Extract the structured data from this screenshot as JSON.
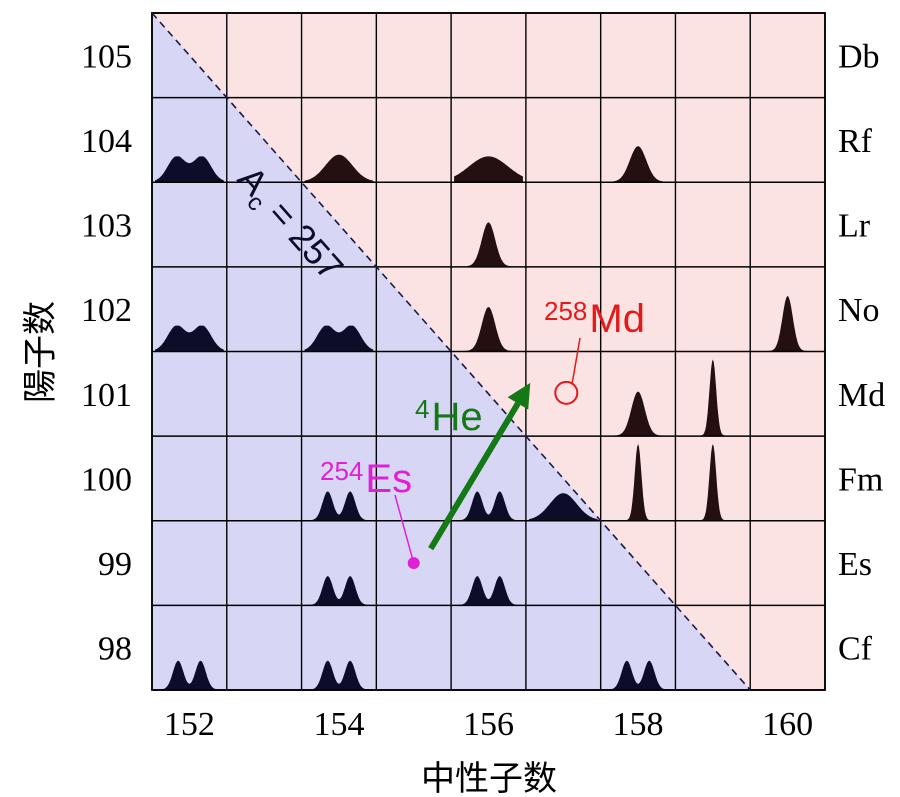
{
  "chart_data": {
    "type": "heatmap",
    "xlabel": "中性子数",
    "ylabel": "陽子数",
    "x_ticks": [
      "152",
      "154",
      "156",
      "158",
      "160"
    ],
    "y_ticks": [
      "98",
      "99",
      "100",
      "101",
      "102",
      "103",
      "104",
      "105"
    ],
    "x_range": [
      151.5,
      160.5
    ],
    "y_range": [
      97.5,
      105.5
    ],
    "element_labels": [
      {
        "Z": 105,
        "symbol": "Db"
      },
      {
        "Z": 104,
        "symbol": "Rf"
      },
      {
        "Z": 103,
        "symbol": "Lr"
      },
      {
        "Z": 102,
        "symbol": "No"
      },
      {
        "Z": 101,
        "symbol": "Md"
      },
      {
        "Z": 100,
        "symbol": "Fm"
      },
      {
        "Z": 99,
        "symbol": "Es"
      },
      {
        "Z": 98,
        "symbol": "Cf"
      }
    ],
    "boundary": {
      "label": "A",
      "subscript": "c",
      "value_text": "= 257",
      "A": 257
    },
    "regions": {
      "below_color": "#d7d7f5",
      "above_color": "#fbe3e3"
    },
    "distributions": [
      {
        "N": 152,
        "Z": 104,
        "shape": "double-broad",
        "color": "#0d0d2a"
      },
      {
        "N": 154,
        "Z": 104,
        "shape": "broad",
        "color": "#241010"
      },
      {
        "N": 156,
        "Z": 104,
        "shape": "wide",
        "color": "#241010"
      },
      {
        "N": 158,
        "Z": 104,
        "shape": "medium",
        "color": "#241010"
      },
      {
        "N": 156,
        "Z": 103,
        "shape": "medium-tall",
        "color": "#241010"
      },
      {
        "N": 152,
        "Z": 102,
        "shape": "double-broad",
        "color": "#0d0d2a"
      },
      {
        "N": 154,
        "Z": 102,
        "shape": "double-broad",
        "color": "#0d0d2a"
      },
      {
        "N": 156,
        "Z": 102,
        "shape": "medium-tall",
        "color": "#241010"
      },
      {
        "N": 160,
        "Z": 102,
        "shape": "sharp",
        "color": "#241010"
      },
      {
        "N": 158,
        "Z": 101,
        "shape": "medium-tall",
        "color": "#241010"
      },
      {
        "N": 159,
        "Z": 101,
        "shape": "very-sharp",
        "color": "#241010"
      },
      {
        "N": 158,
        "Z": 100,
        "shape": "very-sharp",
        "color": "#241010"
      },
      {
        "N": 159,
        "Z": 100,
        "shape": "very-sharp",
        "color": "#241010"
      },
      {
        "N": 154,
        "Z": 100,
        "shape": "double",
        "color": "#0d0d2a"
      },
      {
        "N": 156,
        "Z": 100,
        "shape": "double",
        "color": "#0d0d2a"
      },
      {
        "N": 157,
        "Z": 100,
        "shape": "broad",
        "color": "#0d0d2a"
      },
      {
        "N": 154,
        "Z": 99,
        "shape": "double",
        "color": "#0d0d2a"
      },
      {
        "N": 156,
        "Z": 99,
        "shape": "double",
        "color": "#0d0d2a"
      },
      {
        "N": 152,
        "Z": 98,
        "shape": "double",
        "color": "#0d0d2a"
      },
      {
        "N": 154,
        "Z": 98,
        "shape": "double",
        "color": "#0d0d2a"
      },
      {
        "N": 158,
        "Z": 98,
        "shape": "double",
        "color": "#0d0d2a"
      }
    ],
    "annotations": {
      "target": {
        "mass": "254",
        "symbol": "Es",
        "N": 155,
        "Z": 99,
        "color": "#e020d8"
      },
      "projectile": {
        "mass": "4",
        "symbol": "He",
        "color": "#147814",
        "from": [
          155,
          99.3
        ],
        "to": [
          157,
          101.2
        ]
      },
      "product": {
        "mass": "258",
        "symbol": "Md",
        "N": 157,
        "Z": 101,
        "color": "#e41a1a"
      }
    },
    "grid": true
  }
}
